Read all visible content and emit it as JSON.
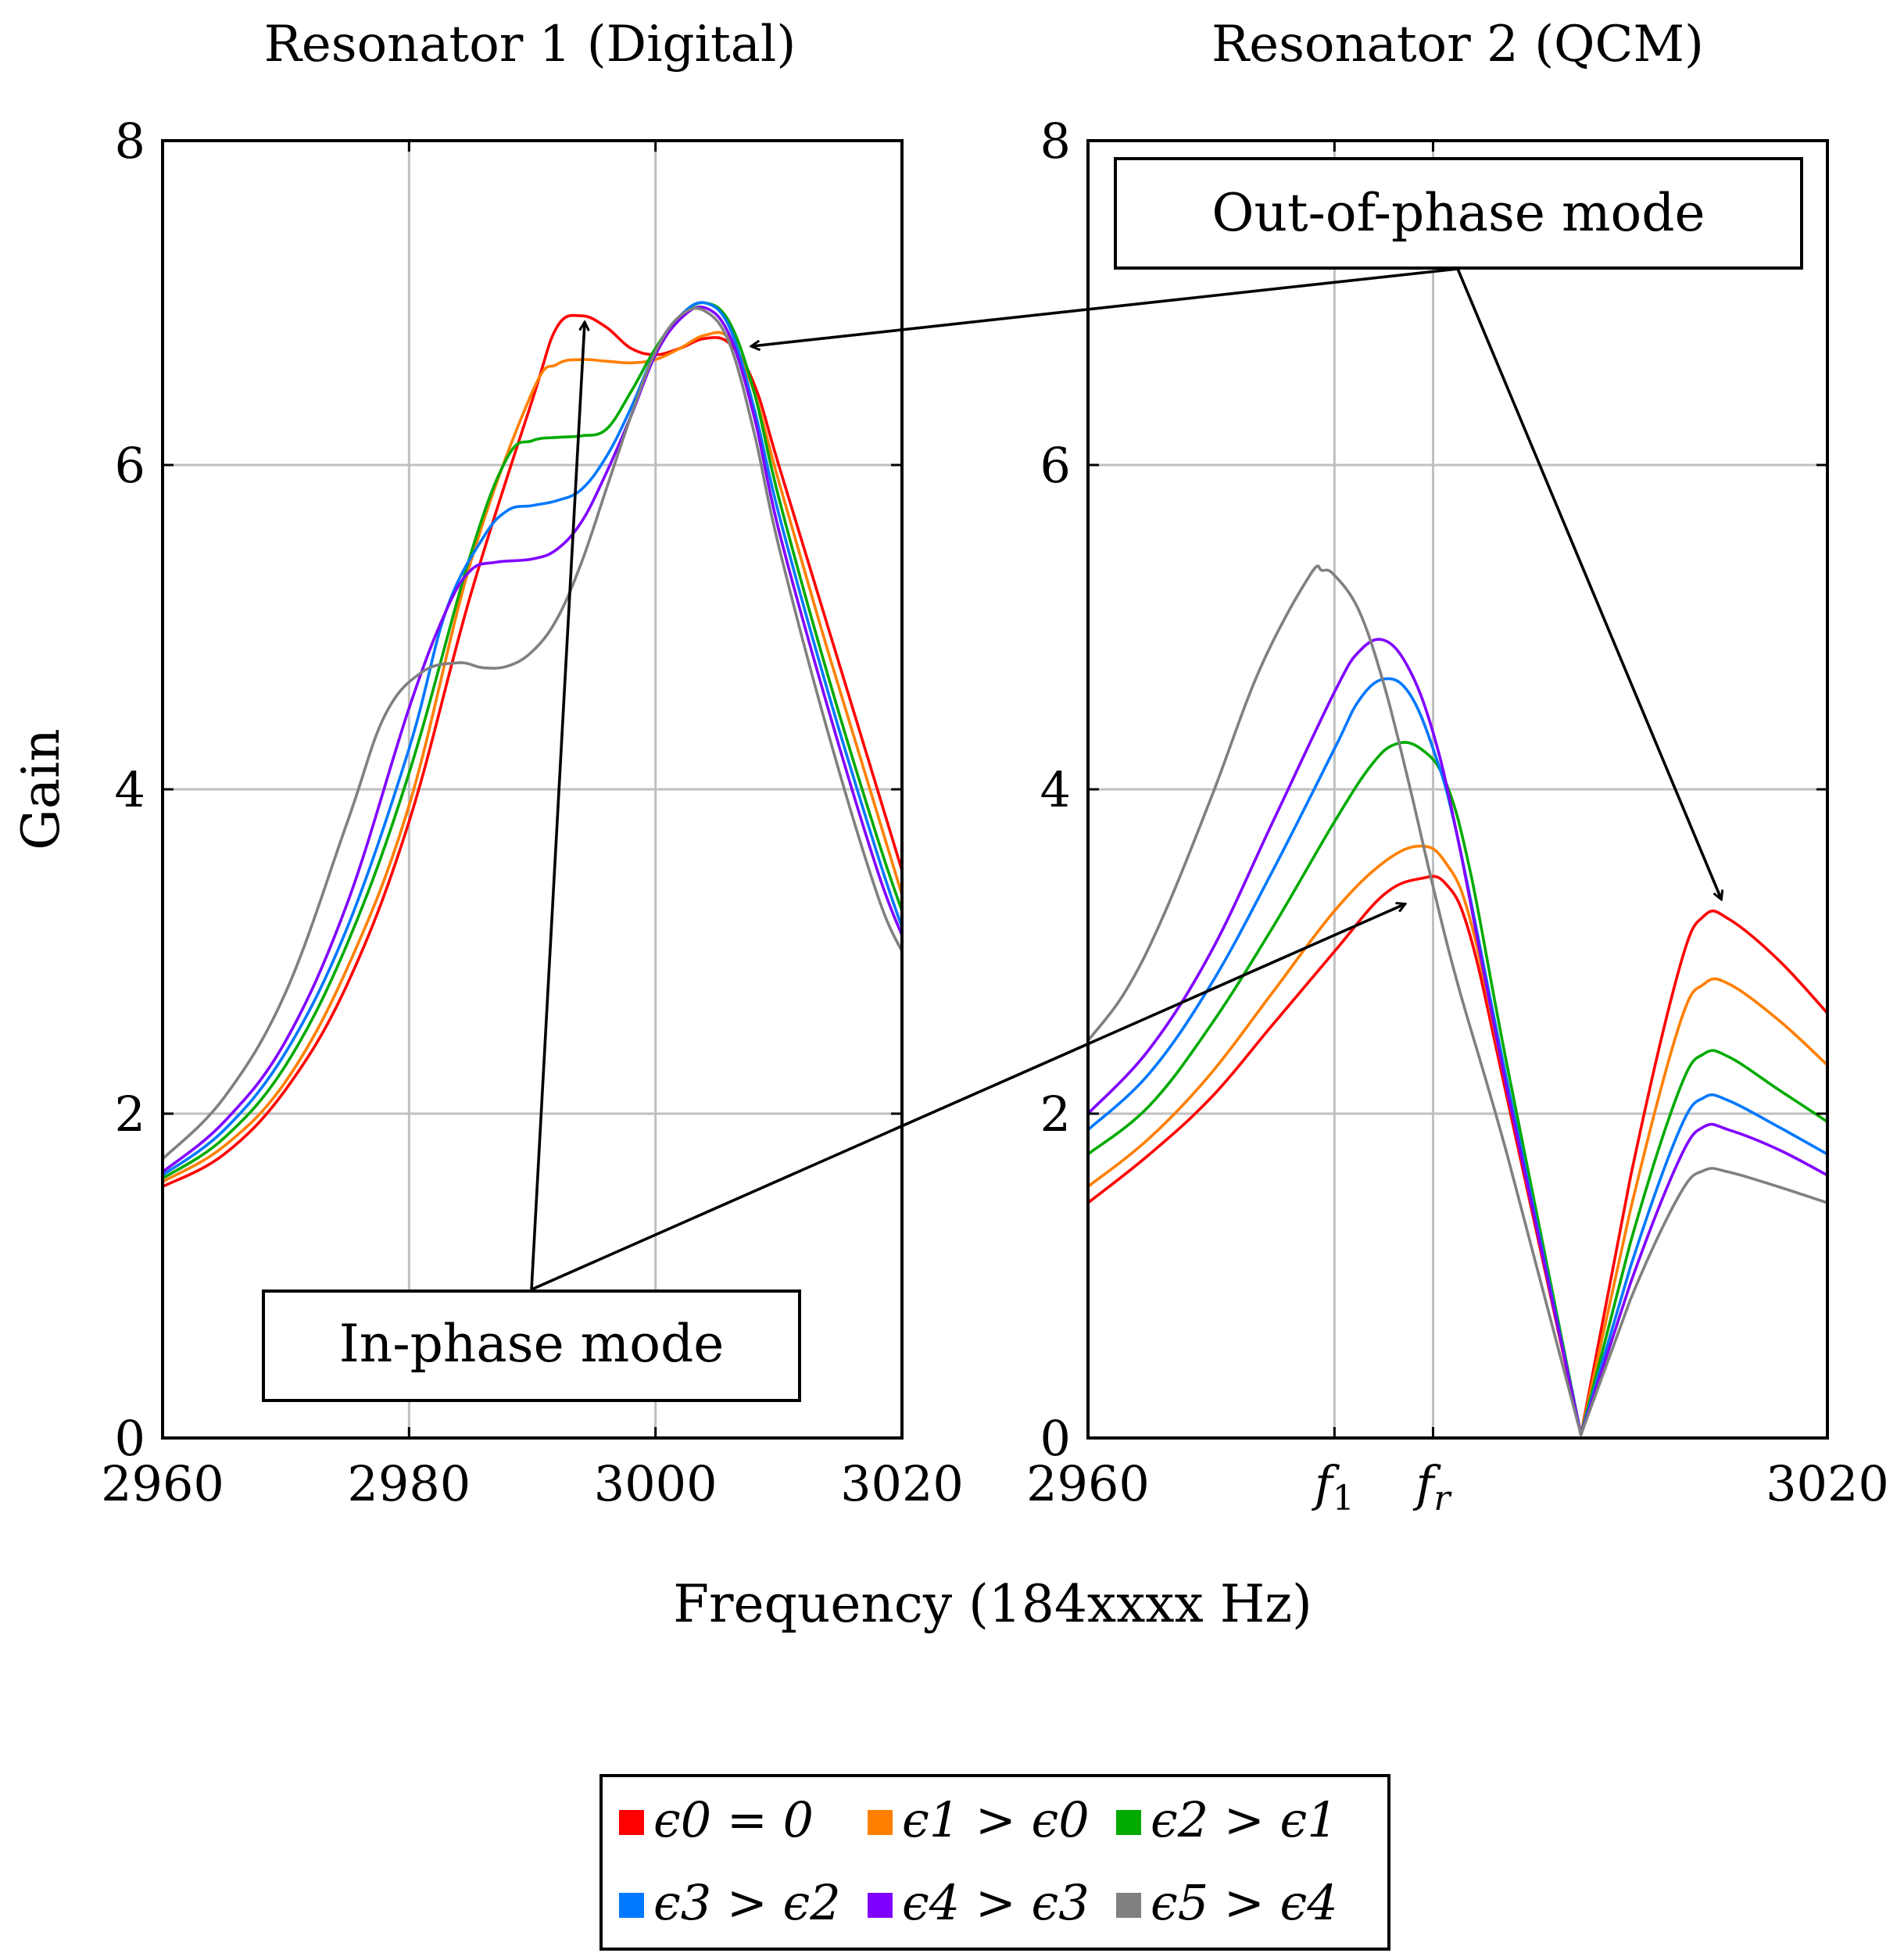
{
  "chart_data": [
    {
      "type": "line",
      "id": "resonator1",
      "title": "Resonator 1 (Digital)",
      "xlabel": "Frequency (184xxxx Hz)",
      "ylabel": "Gain",
      "xlim": [
        2960,
        3020
      ],
      "ylim": [
        0,
        8
      ],
      "xticks": [
        2960,
        2980,
        3000,
        3020
      ],
      "xtick_labels": [
        "2960",
        "2980",
        "3000",
        "3020"
      ],
      "yticks": [
        0,
        2,
        4,
        6,
        8
      ],
      "ytick_labels": [
        "0",
        "2",
        "4",
        "6",
        "8"
      ],
      "grid": true,
      "series": [
        {
          "name": "ε0 = 0",
          "color": "#ff0000",
          "x": [
            2960,
            2965,
            2970,
            2975,
            2980,
            2985,
            2990,
            2992,
            2994,
            2996,
            2998,
            3000,
            3002,
            3004,
            3006,
            3008,
            3010,
            3014,
            3018,
            3020
          ],
          "y": [
            1.55,
            1.75,
            2.15,
            2.8,
            3.8,
            5.2,
            6.4,
            6.85,
            6.92,
            6.85,
            6.72,
            6.68,
            6.72,
            6.78,
            6.75,
            6.5,
            6.0,
            5.0,
            4.0,
            3.5
          ]
        },
        {
          "name": "ε1 > ε0",
          "color": "#ff7f00",
          "x": [
            2960,
            2965,
            2970,
            2975,
            2980,
            2985,
            2990,
            2992,
            2994,
            2996,
            2998,
            3000,
            3002,
            3004,
            3006,
            3008,
            3010,
            3014,
            3018,
            3020
          ],
          "y": [
            1.58,
            1.8,
            2.2,
            2.9,
            3.9,
            5.4,
            6.45,
            6.62,
            6.65,
            6.64,
            6.63,
            6.65,
            6.72,
            6.8,
            6.78,
            6.45,
            5.9,
            4.85,
            3.85,
            3.35
          ]
        },
        {
          "name": "ε2 > ε1",
          "color": "#00aa00",
          "x": [
            2960,
            2965,
            2970,
            2975,
            2980,
            2985,
            2988,
            2990,
            2992,
            2994,
            2996,
            2998,
            3000,
            3002,
            3004,
            3006,
            3008,
            3010,
            3014,
            3018,
            3020
          ],
          "y": [
            1.6,
            1.85,
            2.3,
            3.05,
            4.1,
            5.45,
            6.05,
            6.15,
            6.17,
            6.18,
            6.22,
            6.45,
            6.72,
            6.92,
            7.0,
            6.88,
            6.45,
            5.8,
            4.7,
            3.7,
            3.25
          ]
        },
        {
          "name": "ε3 > ε2",
          "color": "#0078ff",
          "x": [
            2960,
            2965,
            2970,
            2975,
            2980,
            2983,
            2986,
            2988,
            2990,
            2992,
            2994,
            2996,
            2998,
            3000,
            3002,
            3004,
            3006,
            3008,
            3010,
            3014,
            3018,
            3020
          ],
          "y": [
            1.62,
            1.9,
            2.38,
            3.15,
            4.25,
            5.1,
            5.55,
            5.72,
            5.75,
            5.78,
            5.85,
            6.05,
            6.35,
            6.7,
            6.92,
            7.0,
            6.85,
            6.35,
            5.7,
            4.6,
            3.6,
            3.15
          ]
        },
        {
          "name": "ε4 > ε3",
          "color": "#8000ff",
          "x": [
            2960,
            2965,
            2970,
            2975,
            2980,
            2983,
            2985,
            2987,
            2990,
            2992,
            2994,
            2996,
            2998,
            3000,
            3002,
            3004,
            3006,
            3008,
            3010,
            3014,
            3018,
            3020
          ],
          "y": [
            1.64,
            1.95,
            2.45,
            3.3,
            4.5,
            5.1,
            5.35,
            5.4,
            5.42,
            5.48,
            5.65,
            5.95,
            6.3,
            6.68,
            6.9,
            6.97,
            6.8,
            6.3,
            5.6,
            4.5,
            3.5,
            3.1
          ]
        },
        {
          "name": "ε5 > ε4",
          "color": "#808080",
          "x": [
            2960,
            2965,
            2970,
            2975,
            2978,
            2981,
            2984,
            2986,
            2988,
            2990,
            2992,
            2994,
            2996,
            2998,
            3000,
            3002,
            3004,
            3006,
            3008,
            3010,
            3014,
            3018,
            3020
          ],
          "y": [
            1.72,
            2.1,
            2.75,
            3.8,
            4.45,
            4.72,
            4.78,
            4.75,
            4.76,
            4.85,
            5.05,
            5.4,
            5.85,
            6.3,
            6.7,
            6.92,
            6.95,
            6.75,
            6.2,
            5.5,
            4.35,
            3.35,
            3.0
          ]
        }
      ],
      "annotations": [
        "In-phase mode",
        "Out-of-phase mode"
      ]
    },
    {
      "type": "line",
      "id": "resonator2",
      "title": "Resonator 2 (QCM)",
      "xlim": [
        2960,
        3020
      ],
      "ylim": [
        0,
        8
      ],
      "xticks": [
        2960,
        2980,
        2988,
        3020
      ],
      "xtick_labels": [
        "2960",
        "f1",
        "fr",
        "3020"
      ],
      "yticks": [
        0,
        2,
        4,
        6,
        8
      ],
      "ytick_labels": [
        "0",
        "2",
        "4",
        "6",
        "8"
      ],
      "grid": true,
      "series": [
        {
          "name": "ε0 = 0",
          "color": "#ff0000",
          "x": [
            2960,
            2965,
            2970,
            2975,
            2980,
            2984,
            2987,
            2989,
            2991,
            2994,
            3000,
            3004,
            3008,
            3010,
            3012,
            3016,
            3020
          ],
          "y": [
            1.45,
            1.75,
            2.1,
            2.55,
            3.0,
            3.35,
            3.45,
            3.42,
            3.1,
            2.1,
            0.02,
            1.6,
            2.9,
            3.22,
            3.2,
            2.95,
            2.62
          ]
        },
        {
          "name": "ε1 > ε0",
          "color": "#ff7f00",
          "x": [
            2960,
            2965,
            2970,
            2975,
            2980,
            2984,
            2987,
            2989,
            2991,
            2994,
            3000,
            3004,
            3008,
            3010,
            3012,
            3016,
            3020
          ],
          "y": [
            1.55,
            1.85,
            2.25,
            2.75,
            3.25,
            3.55,
            3.65,
            3.55,
            3.2,
            2.15,
            0.02,
            1.4,
            2.55,
            2.8,
            2.8,
            2.58,
            2.3
          ]
        },
        {
          "name": "ε2 > ε1",
          "color": "#00aa00",
          "x": [
            2960,
            2965,
            2970,
            2975,
            2980,
            2983,
            2985,
            2987,
            2989,
            2991,
            2994,
            3000,
            3004,
            3008,
            3010,
            3012,
            3016,
            3020
          ],
          "y": [
            1.75,
            2.05,
            2.55,
            3.15,
            3.8,
            4.15,
            4.28,
            4.25,
            4.05,
            3.5,
            2.3,
            0.02,
            1.2,
            2.15,
            2.37,
            2.35,
            2.15,
            1.95
          ]
        },
        {
          "name": "ε3 > ε2",
          "color": "#0078ff",
          "x": [
            2960,
            2965,
            2970,
            2975,
            2980,
            2982,
            2984,
            2986,
            2988,
            2990,
            2994,
            3000,
            3004,
            3008,
            3010,
            3012,
            3016,
            3020
          ],
          "y": [
            1.9,
            2.25,
            2.8,
            3.5,
            4.25,
            4.55,
            4.68,
            4.6,
            4.25,
            3.7,
            2.2,
            0.02,
            1.05,
            1.9,
            2.1,
            2.08,
            1.92,
            1.75
          ]
        },
        {
          "name": "ε4 > ε3",
          "color": "#8000ff",
          "x": [
            2960,
            2965,
            2970,
            2975,
            2980,
            2982,
            2984,
            2986,
            2988,
            2990,
            2994,
            3000,
            3004,
            3008,
            3010,
            3012,
            3016,
            3020
          ],
          "y": [
            2.0,
            2.4,
            3.0,
            3.8,
            4.6,
            4.85,
            4.92,
            4.75,
            4.35,
            3.7,
            2.15,
            0.02,
            0.95,
            1.72,
            1.92,
            1.9,
            1.78,
            1.62
          ]
        },
        {
          "name": "ε5 > ε4",
          "color": "#808080",
          "x": [
            2960,
            2963,
            2966,
            2970,
            2974,
            2978,
            2979,
            2980,
            2982,
            2984,
            2986,
            2988,
            2990,
            2994,
            3000,
            3004,
            3008,
            3010,
            3012,
            3016,
            3020
          ],
          "y": [
            2.45,
            2.75,
            3.2,
            3.95,
            4.75,
            5.32,
            5.35,
            5.32,
            5.1,
            4.65,
            4.05,
            3.4,
            2.8,
            1.75,
            0.02,
            0.85,
            1.5,
            1.65,
            1.64,
            1.55,
            1.45
          ]
        }
      ],
      "annotations": [
        "Out-of-phase mode"
      ]
    }
  ],
  "labels": {
    "title1": "Resonator 1 (Digital)",
    "title2": "Resonator 2 (QCM)",
    "ylabel": "Gain",
    "xlabel": "Frequency (184xxxx Hz)",
    "inphase": "In-phase mode",
    "outphase": "Out-of-phase mode",
    "fr_sub": "r",
    "f1_sub": "1"
  },
  "legend": {
    "placement": "bottom-center",
    "entries": [
      {
        "label": "ϵ0 = 0",
        "color": "#ff0000"
      },
      {
        "label": "ϵ1 > ϵ0",
        "color": "#ff7f00"
      },
      {
        "label": "ϵ2 > ϵ1",
        "color": "#00aa00"
      },
      {
        "label": "ϵ3 > ϵ2",
        "color": "#0078ff"
      },
      {
        "label": "ϵ4 > ϵ3",
        "color": "#8000ff"
      },
      {
        "label": "ϵ5 > ϵ4",
        "color": "#808080"
      }
    ]
  }
}
